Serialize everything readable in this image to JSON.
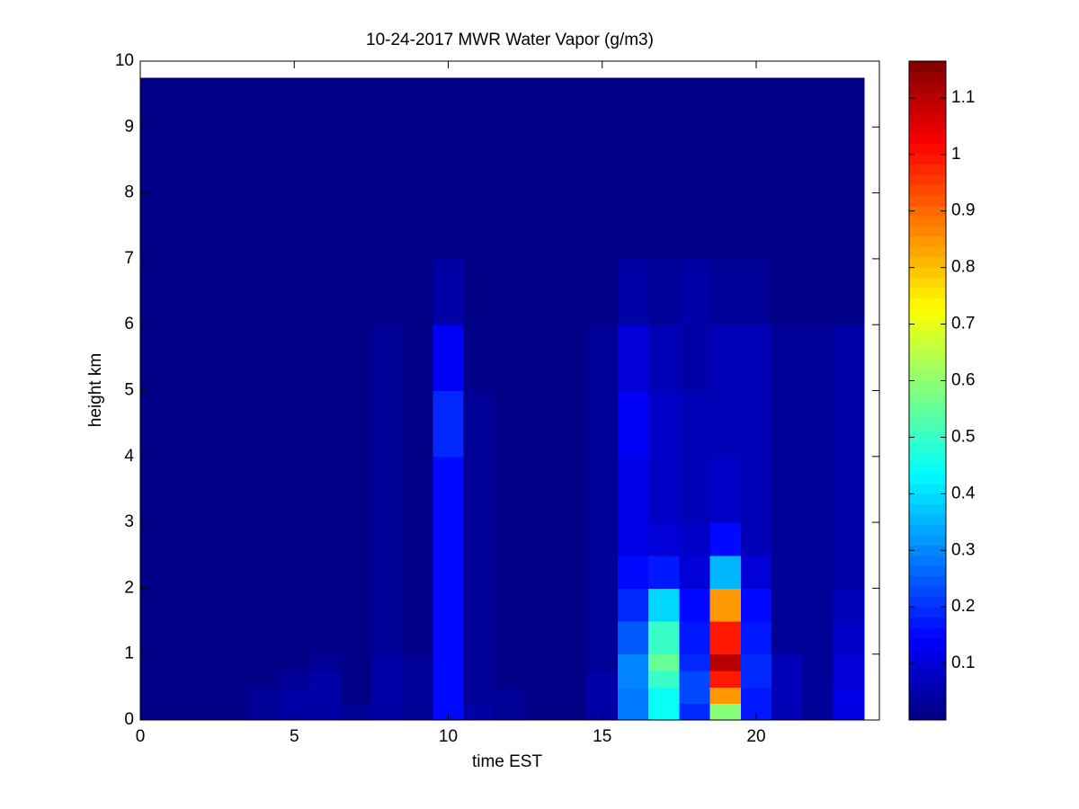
{
  "chart_data": {
    "type": "heatmap",
    "title": "10-24-2017 MWR Water Vapor (g/m3)",
    "x_label": "time EST",
    "y_label": "height km",
    "x": [
      0,
      1,
      2,
      3,
      4,
      5,
      6,
      7,
      8,
      9,
      10,
      11,
      12,
      13,
      14,
      15,
      16,
      17,
      18,
      19,
      20,
      21,
      22,
      23
    ],
    "y_edges": [
      0,
      0.25,
      0.5,
      0.75,
      1,
      1.5,
      2,
      2.5,
      3,
      4,
      5,
      6,
      7,
      9.75
    ],
    "values": [
      [
        0.01,
        0.01,
        0.01,
        0.01,
        0.01,
        0.01,
        0.01,
        0.01,
        0.01,
        0.01,
        0.01,
        0.01,
        0.01
      ],
      [
        0.01,
        0.01,
        0.01,
        0.01,
        0.01,
        0.01,
        0.01,
        0.01,
        0.01,
        0.01,
        0.01,
        0.01,
        0.01
      ],
      [
        0.01,
        0.01,
        0.01,
        0.01,
        0.01,
        0.01,
        0.01,
        0.01,
        0.01,
        0.01,
        0.01,
        0.01,
        0.01
      ],
      [
        0.01,
        0.01,
        0.01,
        0.01,
        0.01,
        0.01,
        0.01,
        0.01,
        0.01,
        0.01,
        0.01,
        0.01,
        0.01
      ],
      [
        0.03,
        0.02,
        0.01,
        0.01,
        0.01,
        0.01,
        0.01,
        0.01,
        0.01,
        0.01,
        0.01,
        0.01,
        0.01
      ],
      [
        0.04,
        0.04,
        0.03,
        0.01,
        0.01,
        0.01,
        0.01,
        0.01,
        0.01,
        0.01,
        0.01,
        0.01,
        0.01
      ],
      [
        0.05,
        0.05,
        0.04,
        0.02,
        0.01,
        0.01,
        0.01,
        0.01,
        0.01,
        0.01,
        0.01,
        0.01,
        0.01
      ],
      [
        0.02,
        0.01,
        0.01,
        0.01,
        0.01,
        0.01,
        0.01,
        0.01,
        0.01,
        0.01,
        0.01,
        0.01,
        0.01
      ],
      [
        0.04,
        0.04,
        0.04,
        0.04,
        0.03,
        0.03,
        0.03,
        0.03,
        0.03,
        0.03,
        0.02,
        0.01,
        0.01
      ],
      [
        0.02,
        0.02,
        0.02,
        0.02,
        0.01,
        0.01,
        0.01,
        0.01,
        0.01,
        0.01,
        0.01,
        0.01,
        0.01
      ],
      [
        0.15,
        0.15,
        0.15,
        0.15,
        0.15,
        0.15,
        0.15,
        0.15,
        0.16,
        0.2,
        0.14,
        0.05,
        0.01
      ],
      [
        0.04,
        0.03,
        0.03,
        0.03,
        0.02,
        0.02,
        0.02,
        0.02,
        0.03,
        0.02,
        0.01,
        0.01,
        0.01
      ],
      [
        0.03,
        0.02,
        0.01,
        0.01,
        0.01,
        0.01,
        0.01,
        0.01,
        0.01,
        0.01,
        0.01,
        0.01,
        0.01
      ],
      [
        0.01,
        0.01,
        0.01,
        0.01,
        0.01,
        0.01,
        0.01,
        0.01,
        0.01,
        0.01,
        0.01,
        0.01,
        0.01
      ],
      [
        0.01,
        0.01,
        0.01,
        0.01,
        0.01,
        0.01,
        0.01,
        0.01,
        0.01,
        0.01,
        0.01,
        0.01,
        0.01
      ],
      [
        0.05,
        0.05,
        0.04,
        0.03,
        0.03,
        0.03,
        0.03,
        0.03,
        0.03,
        0.03,
        0.02,
        0.01,
        0.01
      ],
      [
        0.28,
        0.28,
        0.3,
        0.3,
        0.25,
        0.2,
        0.15,
        0.12,
        0.12,
        0.13,
        0.1,
        0.04,
        0.01
      ],
      [
        0.45,
        0.45,
        0.5,
        0.55,
        0.5,
        0.4,
        0.18,
        0.1,
        0.08,
        0.08,
        0.06,
        0.03,
        0.01
      ],
      [
        0.2,
        0.22,
        0.22,
        0.2,
        0.18,
        0.15,
        0.1,
        0.08,
        0.06,
        0.07,
        0.05,
        0.04,
        0.01
      ],
      [
        0.6,
        0.85,
        1.0,
        1.1,
        1.0,
        0.85,
        0.35,
        0.15,
        0.08,
        0.06,
        0.06,
        0.03,
        0.01
      ],
      [
        0.18,
        0.18,
        0.2,
        0.2,
        0.18,
        0.15,
        0.1,
        0.06,
        0.06,
        0.07,
        0.06,
        0.03,
        0.01
      ],
      [
        0.07,
        0.06,
        0.06,
        0.06,
        0.03,
        0.02,
        0.02,
        0.02,
        0.02,
        0.02,
        0.02,
        0.01,
        0.01
      ],
      [
        0.03,
        0.02,
        0.02,
        0.02,
        0.02,
        0.02,
        0.02,
        0.02,
        0.02,
        0.02,
        0.02,
        0.01,
        0.01
      ],
      [
        0.12,
        0.12,
        0.1,
        0.1,
        0.08,
        0.06,
        0.05,
        0.05,
        0.05,
        0.05,
        0.05,
        0.01,
        0.01
      ]
    ],
    "xlim": [
      0,
      24
    ],
    "xticks": [
      0,
      5,
      10,
      15,
      20
    ],
    "ylim": [
      0,
      10
    ],
    "yticks": [
      0,
      1,
      2,
      3,
      4,
      5,
      6,
      7,
      8,
      9,
      10
    ],
    "clim": [
      0,
      1.165
    ],
    "cticks": [
      0.1,
      0.2,
      0.3,
      0.4,
      0.5,
      0.6,
      0.7,
      0.8,
      0.9,
      1,
      1.1
    ],
    "colormap": "jet"
  }
}
